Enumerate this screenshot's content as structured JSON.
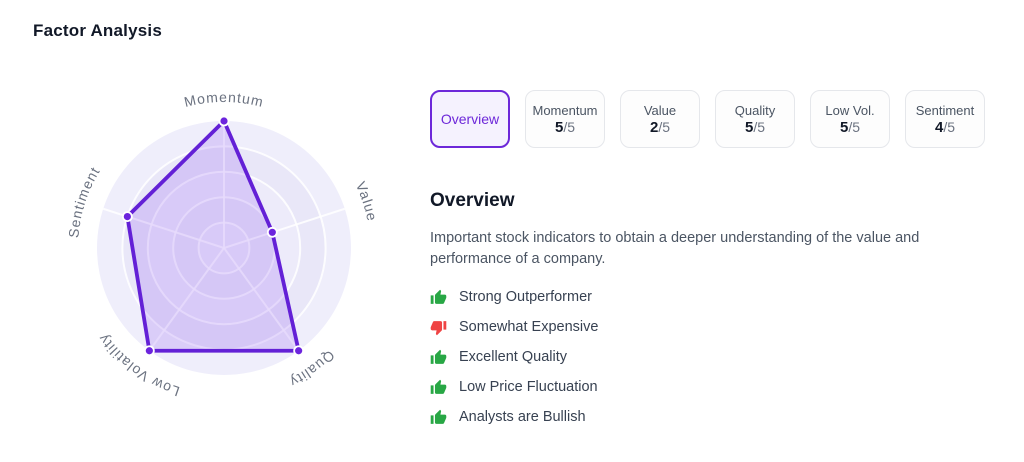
{
  "header": {
    "title": "Factor Analysis"
  },
  "tabs": [
    {
      "id": "overview",
      "label": "Overview",
      "selected": true
    },
    {
      "id": "momentum",
      "label": "Momentum",
      "score": "5",
      "denominator": "/5"
    },
    {
      "id": "value",
      "label": "Value",
      "score": "2",
      "denominator": "/5"
    },
    {
      "id": "quality",
      "label": "Quality",
      "score": "5",
      "denominator": "/5"
    },
    {
      "id": "low-vol",
      "label": "Low Vol.",
      "score": "5",
      "denominator": "/5"
    },
    {
      "id": "sentiment",
      "label": "Sentiment",
      "score": "4",
      "denominator": "/5"
    }
  ],
  "overview": {
    "heading": "Overview",
    "description": "Important stock indicators to obtain a deeper understanding of the value and performance of a company.",
    "indicators": [
      {
        "icon": "thumbs-up-icon",
        "sentiment": "positive",
        "label": "Strong Outperformer"
      },
      {
        "icon": "thumbs-down-icon",
        "sentiment": "negative",
        "label": "Somewhat Expensive"
      },
      {
        "icon": "thumbs-up-icon",
        "sentiment": "positive",
        "label": "Excellent Quality"
      },
      {
        "icon": "thumbs-up-icon",
        "sentiment": "positive",
        "label": "Low Price Fluctuation"
      },
      {
        "icon": "thumbs-up-icon",
        "sentiment": "positive",
        "label": "Analysts are Bullish"
      }
    ]
  },
  "chart_data": {
    "type": "radar",
    "categories": [
      "Momentum",
      "Value",
      "Quality",
      "Low Volatility",
      "Sentiment"
    ],
    "values": [
      5,
      2,
      5,
      5,
      4
    ],
    "max": 5,
    "rings": 5,
    "grid": true,
    "legend": false,
    "colors": {
      "band_outer": "#efeefb",
      "band_a": "#edebfa",
      "band_b": "#e9e7f8",
      "grid_lines": "rgba(255,255,255,0.85)",
      "polygon_stroke": "#6320d6",
      "polygon_fill": "rgba(124,58,237,0.18)",
      "vertex_dot": "#6c24dd",
      "vertex_ring": "#ffffff",
      "axis_label": "#6b7280"
    }
  },
  "colors": {
    "accent": "#6d28d9",
    "accent_bg": "#f5f2fe",
    "positive": "#28a745",
    "negative": "#ef4444",
    "tab_border": "#e5e7eb",
    "heading_text": "#111827",
    "body_text": "#4b5563"
  }
}
